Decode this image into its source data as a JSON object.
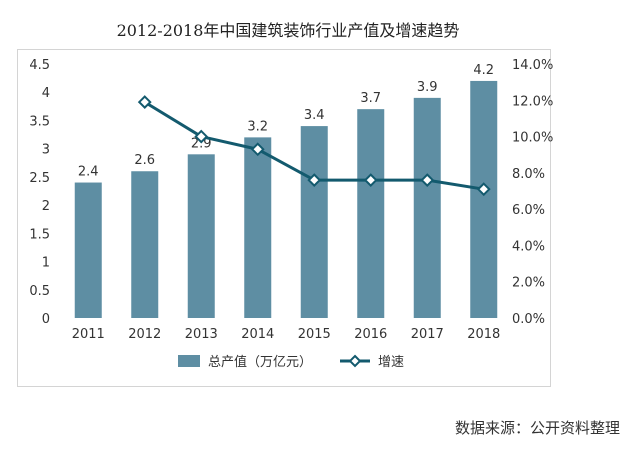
{
  "chart_data": {
    "type": "bar",
    "title": "2012-2018年中国建筑装饰行业产值及增速趋势",
    "categories": [
      "2011",
      "2012",
      "2013",
      "2014",
      "2015",
      "2016",
      "2017",
      "2018"
    ],
    "series": [
      {
        "name": "总产值（万亿元）",
        "type": "bar",
        "axis": "left",
        "values": [
          2.4,
          2.6,
          2.9,
          3.2,
          3.4,
          3.7,
          3.9,
          4.2
        ],
        "labels": [
          "2.4",
          "2.6",
          "2.9",
          "3.2",
          "3.4",
          "3.7",
          "3.9",
          "4.2"
        ]
      },
      {
        "name": "增速",
        "type": "line",
        "axis": "right",
        "values": [
          null,
          11.9,
          10.0,
          9.3,
          7.6,
          7.6,
          7.6,
          7.1
        ]
      }
    ],
    "y_left": {
      "lim": [
        0,
        4.5
      ],
      "ticks": [
        "0",
        "0.5",
        "1",
        "1.5",
        "2",
        "2.5",
        "3",
        "3.5",
        "4",
        "4.5"
      ]
    },
    "y_right": {
      "lim": [
        0,
        14
      ],
      "ticks": [
        "0.0%",
        "2.0%",
        "4.0%",
        "6.0%",
        "8.0%",
        "10.0%",
        "12.0%",
        "14.0%"
      ]
    },
    "grid": false,
    "legend_position": "bottom",
    "colors": {
      "bar": "#5e8ea3",
      "line": "#135a6e",
      "marker_fill": "#ffffff"
    }
  },
  "source_note": "数据来源：公开资料整理"
}
